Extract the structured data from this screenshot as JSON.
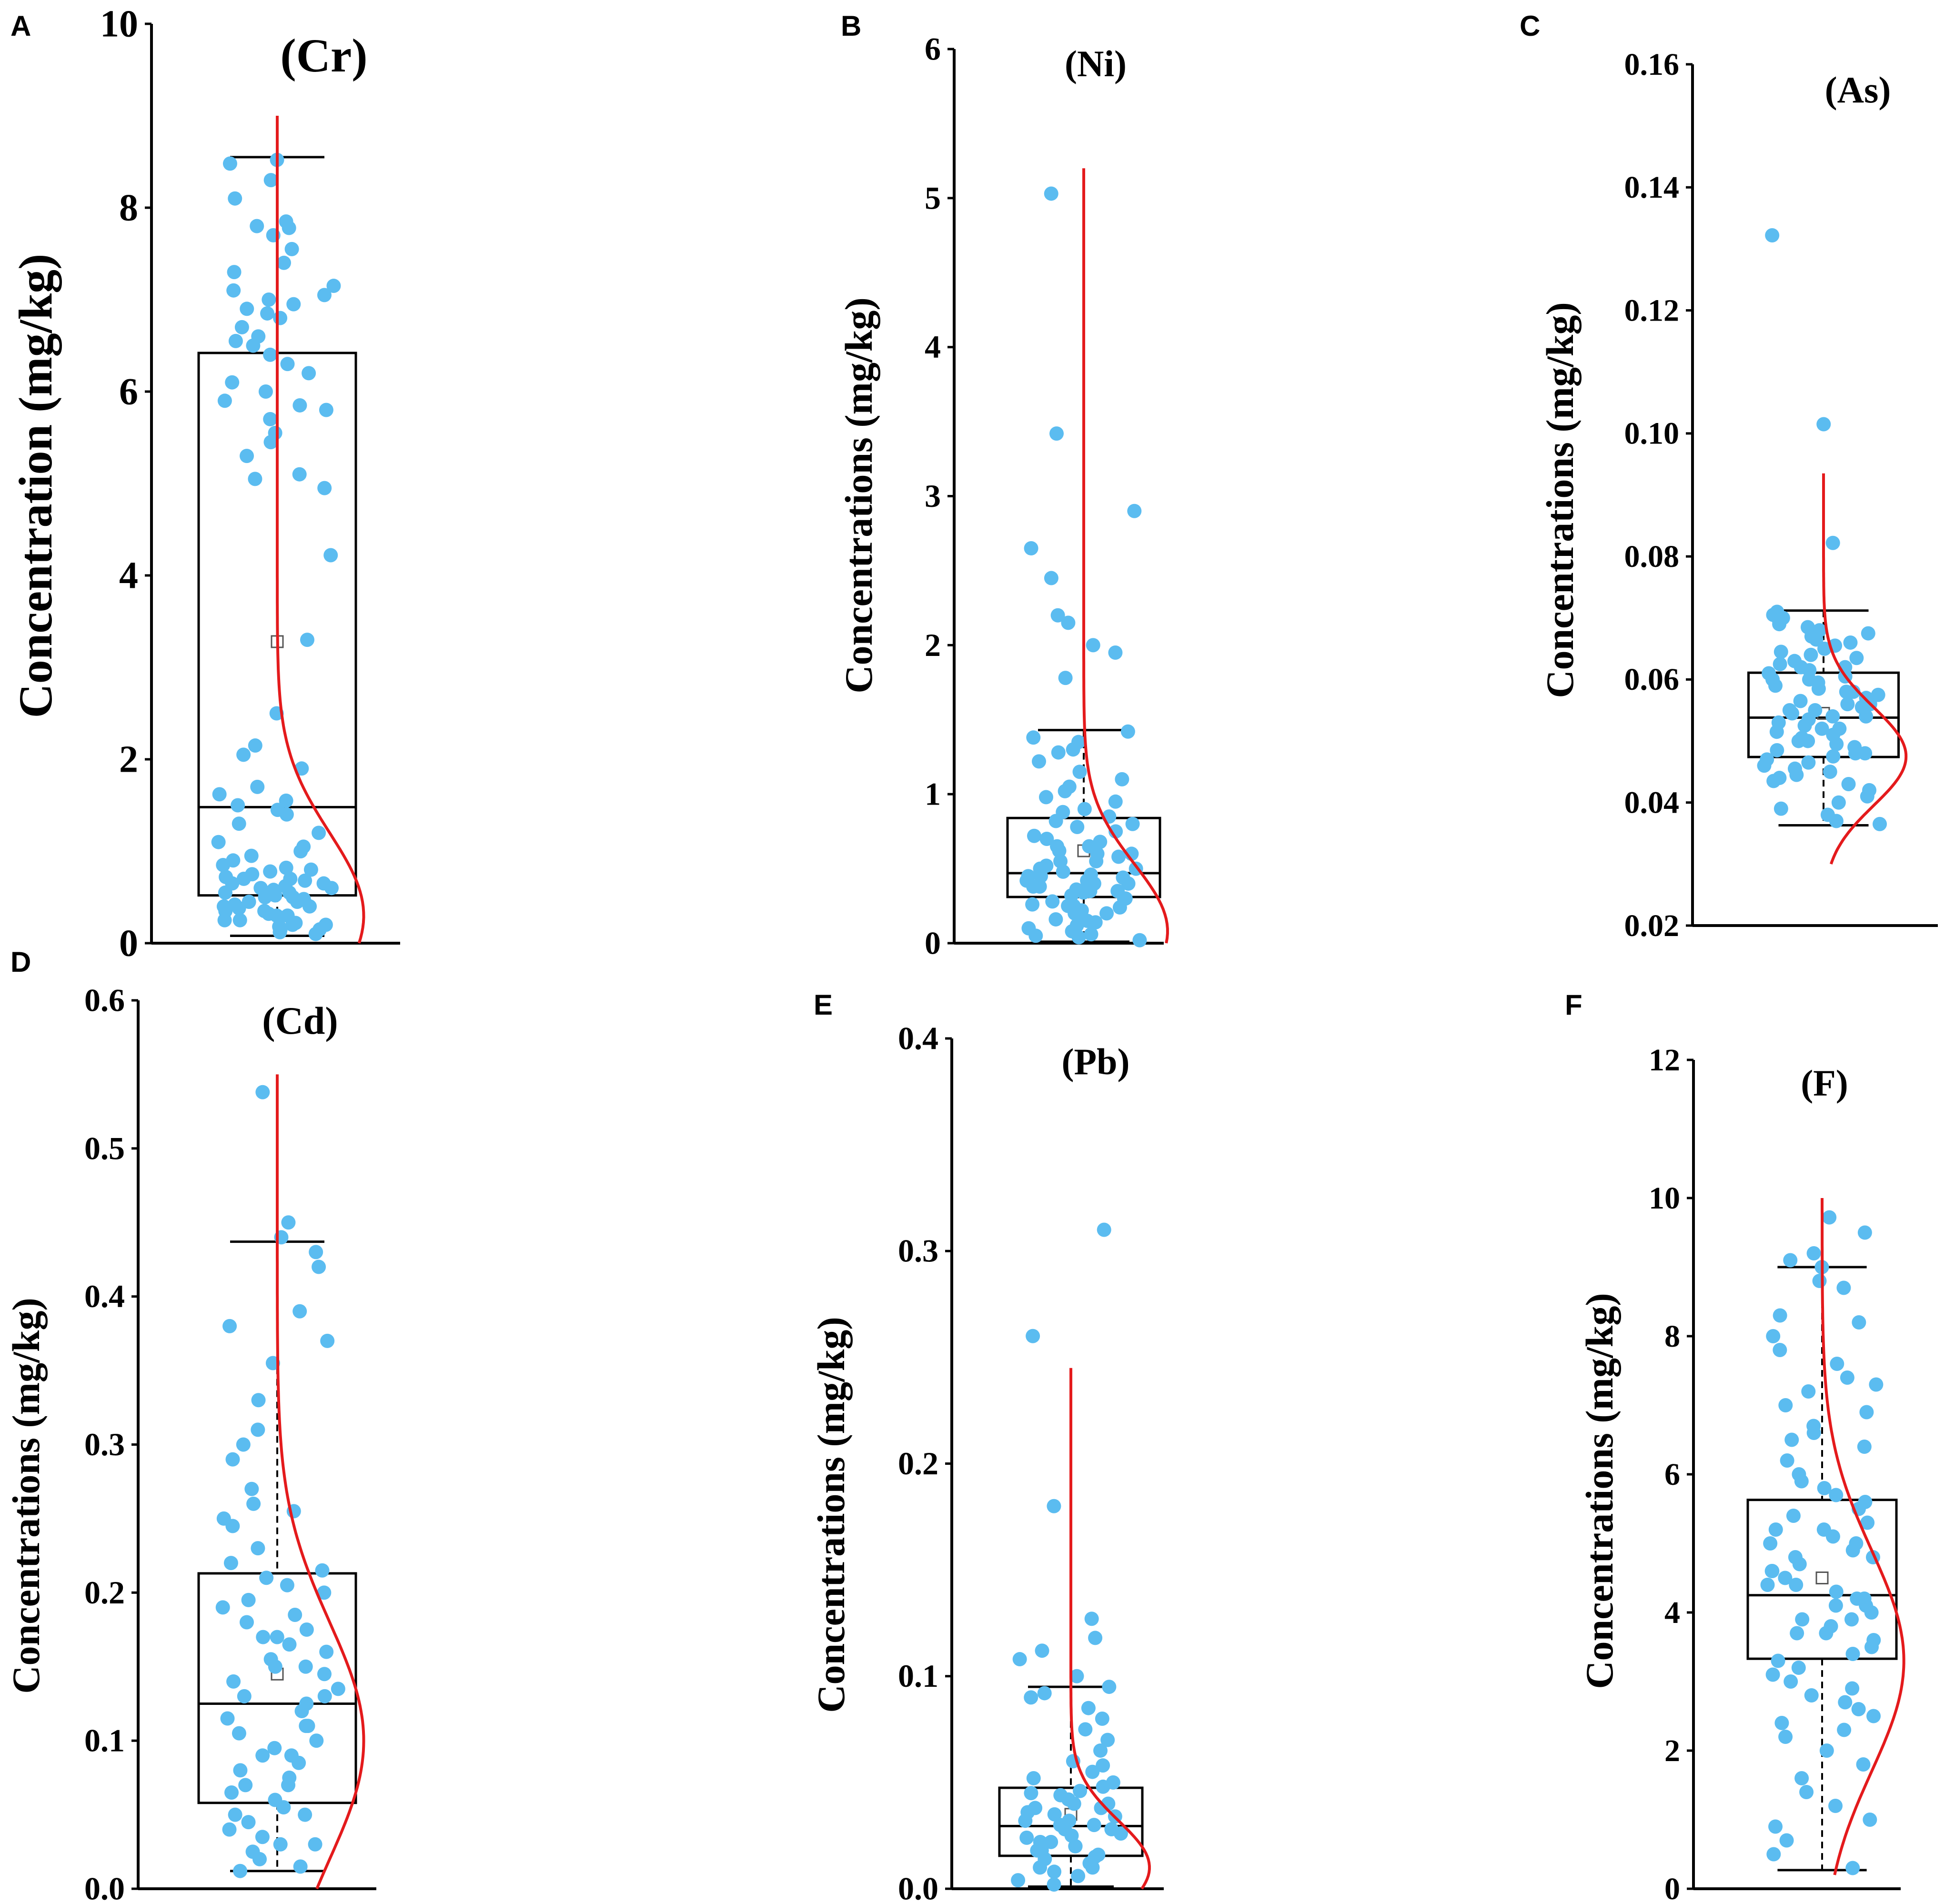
{
  "chart_data": [
    {
      "type": "box",
      "panel": "A",
      "title": "(Cr)",
      "ylabel": "Concentration (mg/kg)",
      "ylim": [
        0,
        10
      ],
      "yticks": [
        "0",
        "2",
        "4",
        "6",
        "8",
        "10"
      ],
      "tick_values": [
        0,
        2,
        4,
        6,
        8,
        10
      ],
      "box": {
        "q1": 0.52,
        "median": 1.48,
        "q3": 6.42,
        "whisker_low": 0.08,
        "whisker_high": 8.55,
        "mean": 3.28
      },
      "distribution_curve": {
        "peak": 0.3,
        "spread": 0.9,
        "y_min": 0.0,
        "y_max": 9.0
      },
      "points": [
        8.52,
        8.48,
        8.3,
        8.1,
        7.85,
        7.8,
        7.78,
        7.7,
        7.55,
        7.4,
        7.3,
        7.15,
        7.1,
        7.05,
        7.0,
        6.95,
        6.9,
        6.85,
        6.8,
        6.7,
        6.6,
        6.55,
        6.5,
        6.4,
        6.3,
        6.2,
        6.1,
        6.0,
        5.9,
        5.85,
        5.8,
        5.7,
        5.55,
        5.45,
        5.3,
        5.1,
        5.05,
        4.95,
        4.22,
        3.3,
        2.5,
        2.15,
        2.05,
        1.9,
        1.7,
        1.62,
        1.55,
        1.5,
        1.45,
        1.4,
        1.3,
        1.2,
        1.1,
        1.05,
        1.0,
        0.95,
        0.9,
        0.85,
        0.82,
        0.8,
        0.78,
        0.75,
        0.72,
        0.7,
        0.68,
        0.65,
        0.62,
        0.6,
        0.58,
        0.55,
        0.52,
        0.5,
        0.48,
        0.45,
        0.42,
        0.4,
        0.38,
        0.35,
        0.32,
        0.3,
        0.28,
        0.25,
        0.22,
        0.2,
        0.18,
        0.15,
        0.12,
        0.1,
        0.55,
        0.45,
        0.35,
        0.6,
        0.5,
        0.4,
        0.3,
        0.65,
        0.25,
        0.15,
        0.7,
        0.2
      ]
    },
    {
      "type": "box",
      "panel": "B",
      "title": "(Ni)",
      "ylabel": "Concentrations (mg/kg)",
      "ylim": [
        0,
        6
      ],
      "yticks": [
        "0",
        "1",
        "2",
        "3",
        "4",
        "5",
        "6"
      ],
      "tick_values": [
        0,
        1,
        2,
        3,
        4,
        5,
        6
      ],
      "box": {
        "q1": 0.31,
        "median": 0.47,
        "q3": 0.84,
        "whisker_low": 0.01,
        "whisker_high": 1.43,
        "mean": 0.62
      },
      "distribution_curve": {
        "peak": 0.08,
        "spread": 0.45,
        "y_min": 0.0,
        "y_max": 5.2
      },
      "points": [
        5.03,
        3.42,
        2.9,
        2.65,
        2.45,
        2.2,
        2.15,
        2.0,
        1.95,
        1.78,
        1.42,
        1.38,
        1.35,
        1.3,
        1.28,
        1.22,
        1.15,
        1.1,
        1.05,
        1.02,
        0.98,
        0.95,
        0.9,
        0.88,
        0.85,
        0.82,
        0.8,
        0.78,
        0.75,
        0.72,
        0.7,
        0.68,
        0.65,
        0.62,
        0.6,
        0.58,
        0.55,
        0.52,
        0.5,
        0.48,
        0.46,
        0.45,
        0.44,
        0.42,
        0.4,
        0.38,
        0.36,
        0.35,
        0.34,
        0.32,
        0.3,
        0.28,
        0.26,
        0.25,
        0.24,
        0.22,
        0.2,
        0.18,
        0.16,
        0.15,
        0.14,
        0.12,
        0.1,
        0.08,
        0.06,
        0.05,
        0.04,
        0.02,
        0.5,
        0.4,
        0.3,
        0.6,
        0.45,
        0.35,
        0.55,
        0.25,
        0.65,
        0.2,
        0.42,
        0.38
      ]
    },
    {
      "type": "box",
      "panel": "C",
      "title": "(As)",
      "ylabel": "Concentrations (mg/kg)",
      "ylim": [
        0.02,
        0.16
      ],
      "yticks": [
        "0.02",
        "0.04",
        "0.06",
        "0.08",
        "0.10",
        "0.12",
        "0.14",
        "0.16"
      ],
      "tick_values": [
        0.02,
        0.04,
        0.06,
        0.08,
        0.1,
        0.12,
        0.14,
        0.16
      ],
      "box": {
        "q1": 0.0474,
        "median": 0.0538,
        "q3": 0.0611,
        "whisker_low": 0.0363,
        "whisker_high": 0.0712,
        "mean": 0.0545
      },
      "distribution_curve": {
        "peak": 0.0475,
        "spread": 0.008,
        "y_min": 0.03,
        "y_max": 0.0935
      },
      "points": [
        0.1322,
        0.1015,
        0.0822,
        0.071,
        0.0705,
        0.07,
        0.0695,
        0.069,
        0.0685,
        0.068,
        0.0675,
        0.067,
        0.0665,
        0.066,
        0.0655,
        0.065,
        0.0645,
        0.064,
        0.0635,
        0.063,
        0.0625,
        0.062,
        0.0615,
        0.061,
        0.0605,
        0.06,
        0.0595,
        0.059,
        0.0585,
        0.058,
        0.0575,
        0.057,
        0.0565,
        0.056,
        0.0555,
        0.055,
        0.0545,
        0.054,
        0.0535,
        0.053,
        0.0525,
        0.052,
        0.0515,
        0.051,
        0.0505,
        0.05,
        0.0495,
        0.049,
        0.0485,
        0.048,
        0.0475,
        0.047,
        0.0465,
        0.046,
        0.0455,
        0.045,
        0.0445,
        0.044,
        0.0435,
        0.043,
        0.042,
        0.041,
        0.04,
        0.039,
        0.038,
        0.037,
        0.0365,
        0.055,
        0.052,
        0.058,
        0.05,
        0.06,
        0.048,
        0.062,
        0.054,
        0.056
      ]
    },
    {
      "type": "box",
      "panel": "D",
      "title": "(Cd)",
      "ylabel": "Concentrations (mg/kg)",
      "ylim": [
        0.0,
        0.6
      ],
      "yticks": [
        "0.0",
        "0.1",
        "0.2",
        "0.3",
        "0.4",
        "0.5",
        "0.6"
      ],
      "tick_values": [
        0.0,
        0.1,
        0.2,
        0.3,
        0.4,
        0.5,
        0.6
      ],
      "box": {
        "q1": 0.058,
        "median": 0.125,
        "q3": 0.213,
        "whisker_low": 0.012,
        "whisker_high": 0.437,
        "mean": 0.145
      },
      "distribution_curve": {
        "peak": 0.1,
        "spread": 0.08,
        "y_min": 0.0,
        "y_max": 0.55
      },
      "points": [
        0.538,
        0.45,
        0.44,
        0.43,
        0.42,
        0.39,
        0.38,
        0.37,
        0.355,
        0.33,
        0.31,
        0.3,
        0.29,
        0.27,
        0.26,
        0.255,
        0.25,
        0.245,
        0.23,
        0.22,
        0.215,
        0.21,
        0.205,
        0.2,
        0.195,
        0.19,
        0.185,
        0.18,
        0.175,
        0.17,
        0.165,
        0.16,
        0.155,
        0.15,
        0.145,
        0.14,
        0.135,
        0.13,
        0.125,
        0.12,
        0.115,
        0.11,
        0.105,
        0.1,
        0.095,
        0.09,
        0.085,
        0.08,
        0.075,
        0.07,
        0.065,
        0.06,
        0.055,
        0.05,
        0.045,
        0.04,
        0.035,
        0.03,
        0.025,
        0.02,
        0.015,
        0.012,
        0.13,
        0.11,
        0.09,
        0.07,
        0.15,
        0.05,
        0.17,
        0.03
      ]
    },
    {
      "type": "box",
      "panel": "E",
      "title": "(Pb)",
      "ylabel": "Concentrations (mg/kg)",
      "ylim": [
        0.0,
        0.4
      ],
      "yticks": [
        "0.0",
        "0.1",
        "0.2",
        "0.3",
        "0.4"
      ],
      "tick_values": [
        0.0,
        0.1,
        0.2,
        0.3,
        0.4
      ],
      "box": {
        "q1": 0.0155,
        "median": 0.0295,
        "q3": 0.0475,
        "whisker_low": 0.001,
        "whisker_high": 0.095,
        "mean": 0.035
      },
      "distribution_curve": {
        "peak": 0.01,
        "spread": 0.022,
        "y_min": 0.0,
        "y_max": 0.245
      },
      "points": [
        0.31,
        0.26,
        0.18,
        0.127,
        0.118,
        0.112,
        0.108,
        0.1,
        0.095,
        0.092,
        0.09,
        0.085,
        0.08,
        0.075,
        0.07,
        0.065,
        0.06,
        0.058,
        0.055,
        0.052,
        0.05,
        0.048,
        0.046,
        0.044,
        0.042,
        0.04,
        0.038,
        0.036,
        0.034,
        0.032,
        0.03,
        0.028,
        0.026,
        0.024,
        0.022,
        0.02,
        0.018,
        0.016,
        0.014,
        0.012,
        0.01,
        0.008,
        0.006,
        0.004,
        0.002,
        0.03,
        0.025,
        0.035,
        0.02,
        0.04,
        0.015,
        0.045,
        0.01,
        0.028,
        0.032,
        0.038,
        0.022,
        0.018
      ]
    },
    {
      "type": "box",
      "panel": "F",
      "title": "(F)",
      "ylabel": "Concentrations (mg/kg)",
      "ylim": [
        0,
        12
      ],
      "yticks": [
        "0",
        "2",
        "4",
        "6",
        "8",
        "10",
        "12"
      ],
      "tick_values": [
        0,
        2,
        4,
        6,
        8,
        10,
        12
      ],
      "box": {
        "q1": 3.33,
        "median": 4.25,
        "q3": 5.63,
        "whisker_low": 0.27,
        "whisker_high": 9.0,
        "mean": 4.5
      },
      "distribution_curve": {
        "peak": 3.3,
        "spread": 1.6,
        "y_min": 0.2,
        "y_max": 10.0
      },
      "points": [
        9.72,
        9.5,
        9.2,
        9.1,
        9.0,
        8.8,
        8.7,
        8.3,
        8.2,
        8.0,
        7.8,
        7.6,
        7.4,
        7.3,
        7.2,
        7.0,
        6.9,
        6.7,
        6.6,
        6.5,
        6.4,
        6.2,
        6.0,
        5.9,
        5.8,
        5.7,
        5.6,
        5.5,
        5.4,
        5.3,
        5.2,
        5.1,
        5.0,
        4.9,
        4.8,
        4.7,
        4.6,
        4.5,
        4.4,
        4.3,
        4.2,
        4.1,
        4.0,
        3.9,
        3.8,
        3.7,
        3.6,
        3.5,
        3.4,
        3.3,
        3.2,
        3.1,
        3.0,
        2.9,
        2.8,
        2.7,
        2.6,
        2.5,
        2.4,
        2.3,
        2.2,
        2.0,
        1.8,
        1.6,
        1.4,
        1.2,
        1.0,
        0.9,
        0.7,
        0.5,
        0.3,
        4.2,
        4.4,
        4.6,
        3.9,
        5.0,
        4.1,
        3.7,
        4.8,
        5.2
      ]
    }
  ],
  "colors": {
    "points": "#5bbcf0",
    "curve": "#e41a1c",
    "axis": "#000000",
    "box": "#000000"
  }
}
